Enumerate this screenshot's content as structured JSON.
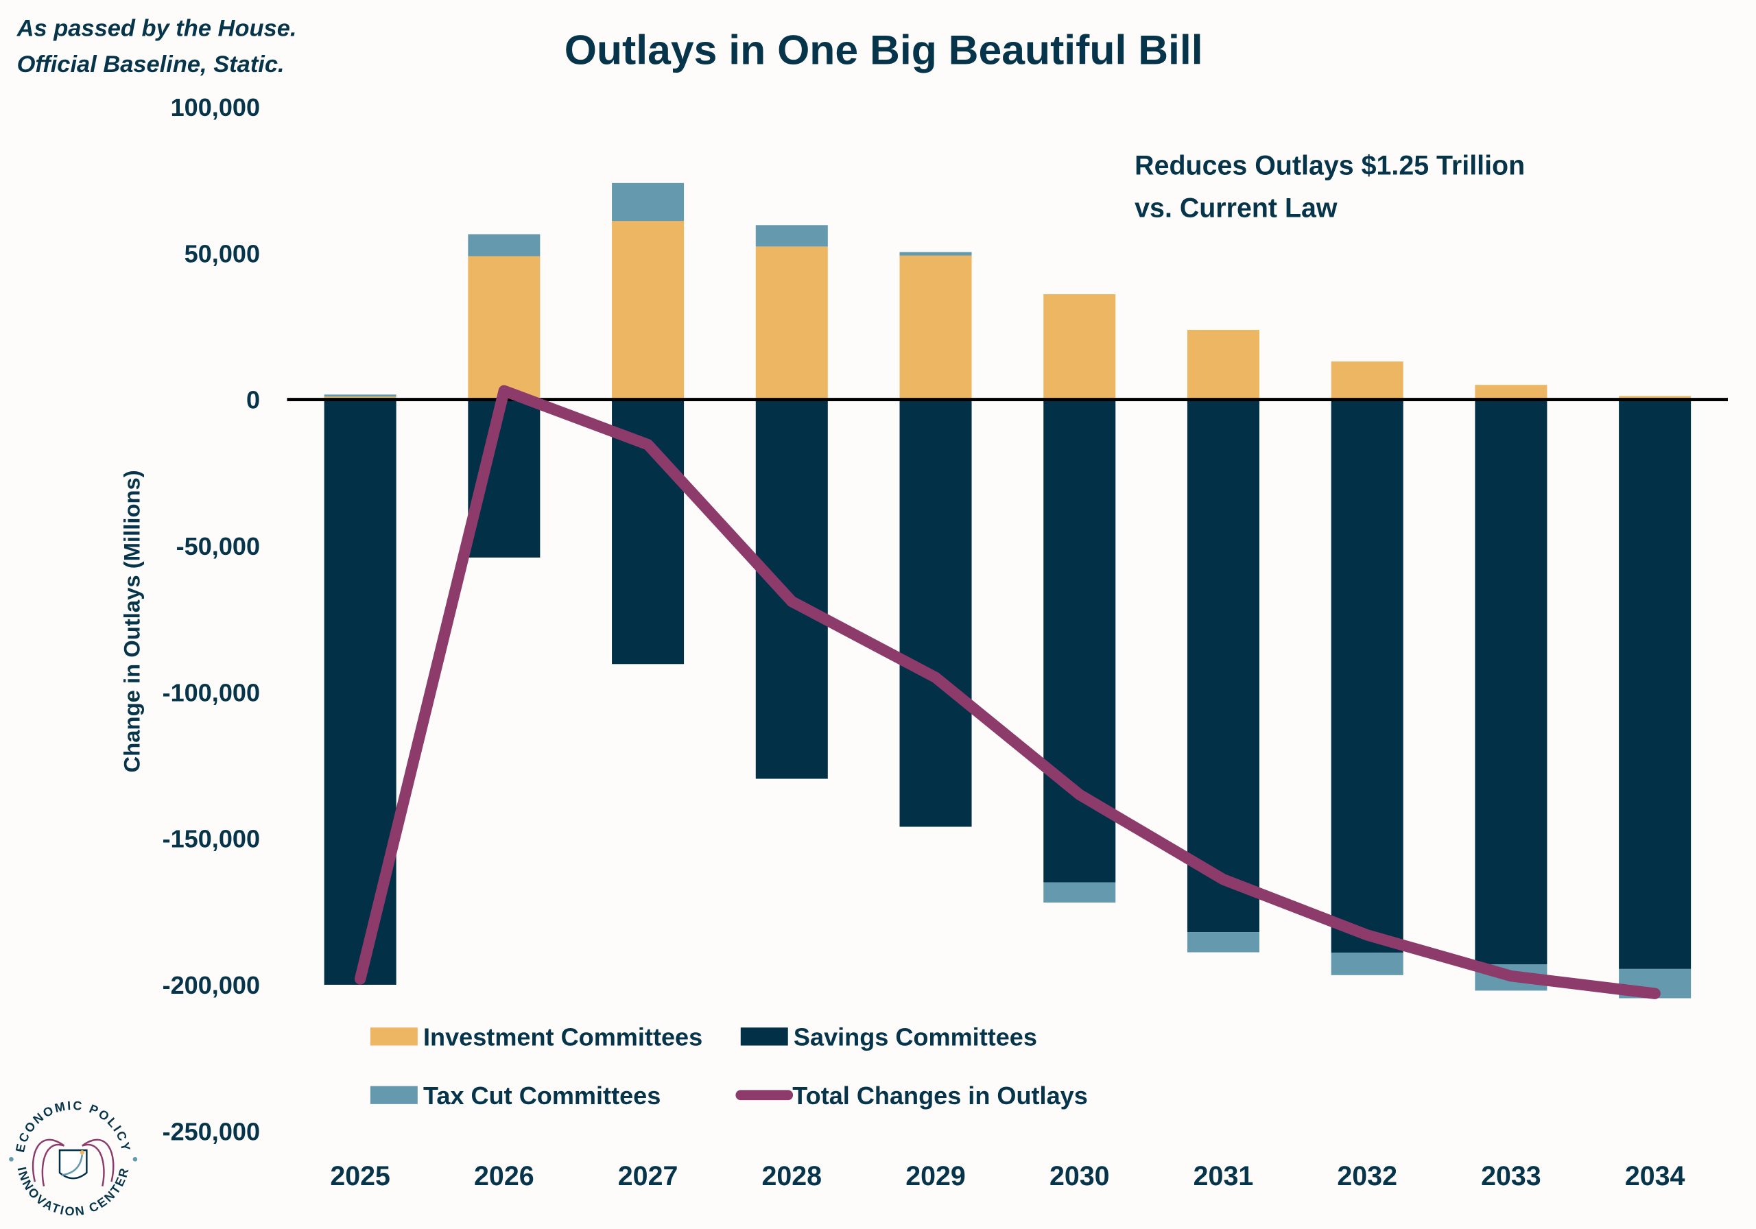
{
  "chart_data": {
    "type": "bar",
    "stacked": true,
    "title": "Outlays in One Big Beautiful Bill",
    "note_top_left": [
      "As passed by the House.",
      "Official Baseline, Static."
    ],
    "annotation": [
      "Reduces Outlays $1.25 Trillion",
      "vs. Current Law"
    ],
    "ylabel": "Change in Outlays (Millions)",
    "xlabel": "",
    "ylim": [
      -250000,
      100000
    ],
    "yticks": [
      100000,
      50000,
      0,
      -50000,
      -100000,
      -150000,
      -200000,
      -250000
    ],
    "ytick_labels": [
      "100,000",
      "50,000",
      "0",
      "-50,000",
      "-100,000",
      "-150,000",
      "-200,000",
      "-250,000"
    ],
    "categories": [
      "2025",
      "2026",
      "2027",
      "2028",
      "2029",
      "2030",
      "2031",
      "2032",
      "2033",
      "2034"
    ],
    "series": [
      {
        "name": "Investment Committees",
        "type": "bar",
        "color": "#edb662",
        "values": [
          1000,
          49000,
          61000,
          52300,
          49200,
          36000,
          23800,
          13000,
          5000,
          1200
        ]
      },
      {
        "name": "Savings Committees",
        "type": "bar",
        "color": "#023047",
        "values": [
          -200000,
          -54000,
          -90400,
          -129600,
          -146000,
          -165000,
          -182000,
          -189000,
          -193000,
          -194600
        ]
      },
      {
        "name": "Tax Cut Committees",
        "type": "bar",
        "color": "#6499ae",
        "values": [
          700,
          7500,
          13000,
          7300,
          1200,
          -6900,
          -6900,
          -7700,
          -9000,
          -10000
        ]
      },
      {
        "name": "Total Changes in Outlays",
        "type": "line",
        "color": "#8c3b6b",
        "values": [
          -198000,
          3000,
          -15400,
          -69000,
          -95000,
          -135000,
          -164000,
          -183000,
          -197000,
          -203000
        ]
      }
    ],
    "legend": "bottom-left",
    "grid": false
  },
  "logo": {
    "text_top": "ECONOMIC POLICY",
    "text_bottom": "INNOVATION CENTER"
  }
}
